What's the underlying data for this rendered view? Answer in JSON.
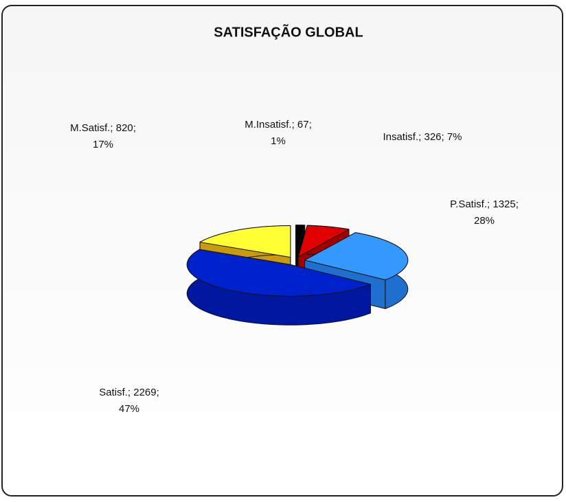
{
  "chart_data": {
    "type": "pie3d",
    "title": "SATISFAÇÃO GLOBAL",
    "categories": [
      "M.Insatisf.",
      "Insatisf.",
      "P.Satisf.",
      "Satisf.",
      "M.Satisf."
    ],
    "values": [
      67,
      326,
      1325,
      2269,
      820
    ],
    "labels": [
      [
        "M.Insatisf.; 67;",
        "1%"
      ],
      [
        "Insatisf.; 326; 7%"
      ],
      [
        "P.Satisf.; 1325;",
        "28%"
      ],
      [
        "Satisf.; 2269;",
        "47%"
      ],
      [
        "M.Satisf.; 820;",
        "17%"
      ]
    ],
    "colors": [
      "#000000",
      "#e00000",
      "#3399ff",
      "#0022cc",
      "#ffff33"
    ],
    "side_colors": [
      "#000000",
      "#a00000",
      "#1f6fcf",
      "#0018a0",
      "#c89a10"
    ]
  }
}
